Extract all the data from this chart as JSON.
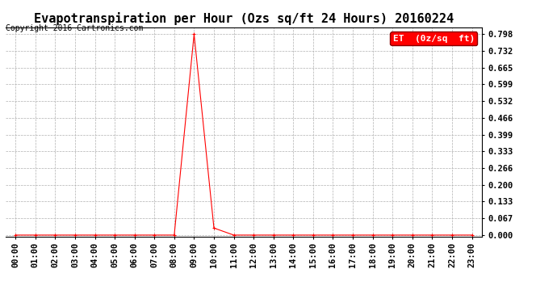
{
  "title": "Evapotranspiration per Hour (Ozs sq/ft 24 Hours) 20160224",
  "copyright": "Copyright 2016 Cartronics.com",
  "legend_label": "ET  (0z/sq  ft)",
  "line_color": "#ff0000",
  "marker": "+",
  "background_color": "#ffffff",
  "grid_color": "#b0b0b0",
  "x_labels": [
    "00:00",
    "01:00",
    "02:00",
    "03:00",
    "04:00",
    "05:00",
    "06:00",
    "07:00",
    "08:00",
    "09:00",
    "10:00",
    "11:00",
    "12:00",
    "13:00",
    "14:00",
    "15:00",
    "16:00",
    "17:00",
    "18:00",
    "19:00",
    "20:00",
    "21:00",
    "22:00",
    "23:00"
  ],
  "y_ticks": [
    0.0,
    0.067,
    0.133,
    0.2,
    0.266,
    0.333,
    0.399,
    0.466,
    0.532,
    0.599,
    0.665,
    0.732,
    0.798
  ],
  "ylim": [
    -0.005,
    0.825
  ],
  "data_values": [
    0,
    0,
    0,
    0,
    0,
    0,
    0,
    0,
    0,
    0.798,
    0.028,
    0,
    0,
    0,
    0,
    0,
    0,
    0,
    0,
    0,
    0,
    0,
    0,
    0
  ],
  "title_fontsize": 11,
  "copyright_fontsize": 7,
  "tick_fontsize": 7.5,
  "legend_fontsize": 8
}
